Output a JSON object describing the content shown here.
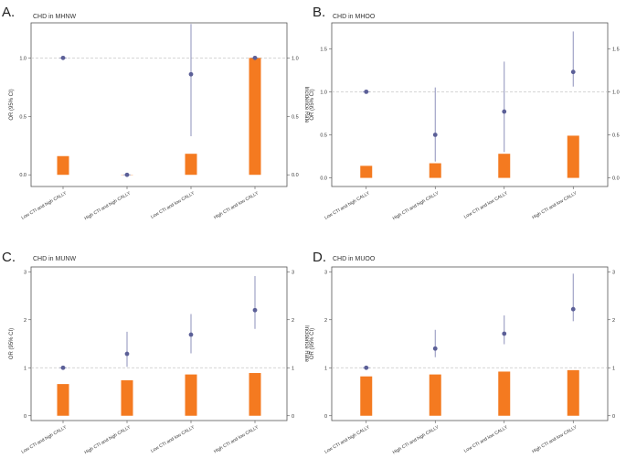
{
  "figure": {
    "ylabel_left": "OR (95% CI)",
    "ylabel_right": "Incidence Rate",
    "colors": {
      "bar": "#f47a20",
      "point": "#5b5f97",
      "ci": "#8e90bb",
      "ref": "#c8c8c8",
      "frame": "#555555",
      "text": "#333333"
    }
  },
  "chart_data": [
    {
      "panel_letter": "A.",
      "type": "bar",
      "title": "CHD in MHNW",
      "categories": [
        "Low CTI and high CALLY",
        "High CTI and high CALLY",
        "Low CTI and low CALLY",
        "High CTI and low CALLY"
      ],
      "ylim_left": [
        -0.1,
        1.3
      ],
      "yticks_left": [
        "0.0",
        "0.5",
        "1.0"
      ],
      "ylim_right": [
        -0.1,
        1.3
      ],
      "yticks_right": [
        "0.0",
        "0.5",
        "1.0"
      ],
      "reference_line": 1.0,
      "series": [
        {
          "name": "Incidence Rate",
          "kind": "bar",
          "axis": "right",
          "values": [
            0.16,
            0.0,
            0.18,
            1.0
          ]
        },
        {
          "name": "OR",
          "kind": "point",
          "axis": "left",
          "values": [
            1.0,
            0.0,
            0.86,
            1.0
          ],
          "ci_lower": [
            1.0,
            0.0,
            0.33,
            1.0
          ],
          "ci_upper": [
            1.0,
            0.0,
            1.29,
            1.0
          ]
        }
      ]
    },
    {
      "panel_letter": "B.",
      "type": "bar",
      "title": "CHD in MHOO",
      "categories": [
        "Low CTI and high CALLY",
        "High CTI and high CALLY",
        "Low CTI and low CALLY",
        "High CTI and low CALLY"
      ],
      "ylim_left": [
        -0.1,
        1.8
      ],
      "yticks_left": [
        "0.0",
        "0.5",
        "1.0",
        "1.5"
      ],
      "ylim_right": [
        -0.1,
        1.8
      ],
      "yticks_right": [
        "0.0",
        "0.5",
        "1.0",
        "1.5"
      ],
      "reference_line": 1.0,
      "series": [
        {
          "name": "Incidence Rate",
          "kind": "bar",
          "axis": "right",
          "values": [
            0.14,
            0.17,
            0.28,
            0.49
          ]
        },
        {
          "name": "OR",
          "kind": "point",
          "axis": "left",
          "values": [
            1.0,
            0.5,
            0.77,
            1.23
          ],
          "ci_lower": [
            1.0,
            0.19,
            0.3,
            1.06
          ],
          "ci_upper": [
            1.0,
            1.05,
            1.35,
            1.7
          ]
        }
      ]
    },
    {
      "panel_letter": "C.",
      "type": "bar",
      "title": "CHD in MUNW",
      "categories": [
        "Low CTI and high CALLY",
        "High CTI and high CALLY",
        "Low CTI and low CALLY",
        "High CTI and low CALLY"
      ],
      "ylim_left": [
        -0.1,
        3.1
      ],
      "yticks_left": [
        "0",
        "1",
        "2",
        "3"
      ],
      "ylim_right": [
        -0.1,
        3.1
      ],
      "yticks_right": [
        "0",
        "1",
        "2",
        "3"
      ],
      "reference_line": 1.0,
      "series": [
        {
          "name": "Incidence Rate",
          "kind": "bar",
          "axis": "right",
          "values": [
            0.66,
            0.74,
            0.86,
            0.89
          ]
        },
        {
          "name": "OR",
          "kind": "point",
          "axis": "left",
          "values": [
            1.0,
            1.29,
            1.69,
            2.2
          ],
          "ci_lower": [
            1.0,
            1.02,
            1.3,
            1.81
          ],
          "ci_upper": [
            1.0,
            1.75,
            2.12,
            2.91
          ]
        }
      ]
    },
    {
      "panel_letter": "D.",
      "type": "bar",
      "title": "CHD in MUOO",
      "categories": [
        "Low CTI and high CALLY",
        "High CTI and high CALLY",
        "Low CTI and low CALLY",
        "High CTI and low CALLY"
      ],
      "ylim_left": [
        -0.1,
        3.1
      ],
      "yticks_left": [
        "0",
        "1",
        "2",
        "3"
      ],
      "ylim_right": [
        -0.1,
        3.1
      ],
      "yticks_right": [
        "0",
        "1",
        "2",
        "3"
      ],
      "reference_line": 1.0,
      "series": [
        {
          "name": "Incidence Rate",
          "kind": "bar",
          "axis": "right",
          "values": [
            0.82,
            0.86,
            0.92,
            0.95
          ]
        },
        {
          "name": "OR",
          "kind": "point",
          "axis": "left",
          "values": [
            1.0,
            1.4,
            1.71,
            2.22
          ],
          "ci_lower": [
            1.0,
            1.22,
            1.49,
            1.97
          ],
          "ci_upper": [
            1.0,
            1.79,
            2.09,
            2.96
          ]
        }
      ]
    }
  ]
}
